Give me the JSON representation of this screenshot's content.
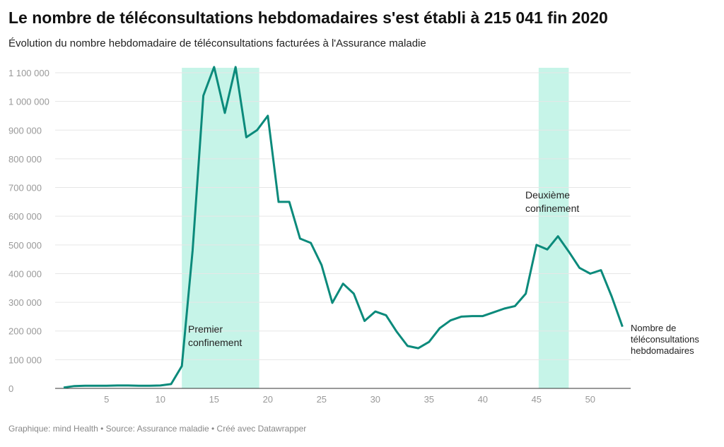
{
  "title": "Le nombre de téléconsultations hebdomadaires s'est établi à 215 041 fin 2020",
  "subtitle": "Évolution du nombre hebdomadaire de téléconsultations facturées à l'Assurance maladie",
  "footer": "Graphique: mind Health • Source: Assurance maladie • Créé avec Datawrapper",
  "colors": {
    "line": "#0b8a7b",
    "band": "#c6f4e8",
    "grid": "#e6e6e6"
  },
  "chart_data": {
    "type": "line",
    "title": "Le nombre de téléconsultations hebdomadaires s'est établi à 215 041 fin 2020",
    "xlabel": "",
    "ylabel": "",
    "xlim": [
      1,
      53
    ],
    "ylim": [
      0,
      1100000
    ],
    "grid": true,
    "x_ticks": [
      5,
      10,
      15,
      20,
      25,
      30,
      35,
      40,
      45,
      50
    ],
    "y_ticks": [
      0,
      100000,
      200000,
      300000,
      400000,
      500000,
      600000,
      700000,
      800000,
      900000,
      1000000,
      1100000
    ],
    "y_tick_labels": [
      "0",
      "100 000",
      "200 000",
      "300 000",
      "400 000",
      "500 000",
      "600 000",
      "700 000",
      "800 000",
      "900 000",
      "1 000 000",
      "1 100 000"
    ],
    "series": [
      {
        "name": "Nombre de téléconsultations hebdomadaires",
        "label_lines": [
          "Nombre de",
          "téléconsultations",
          "hebdomadaires"
        ],
        "x": [
          1,
          2,
          3,
          4,
          5,
          6,
          7,
          8,
          9,
          10,
          11,
          12,
          13,
          14,
          15,
          16,
          17,
          18,
          19,
          20,
          21,
          22,
          23,
          24,
          25,
          26,
          27,
          28,
          29,
          30,
          31,
          32,
          33,
          34,
          35,
          36,
          37,
          38,
          39,
          40,
          41,
          42,
          43,
          44,
          45,
          46,
          47,
          48,
          49,
          50,
          51,
          52,
          53
        ],
        "values": [
          3000,
          8000,
          9000,
          9000,
          9000,
          10000,
          10000,
          9000,
          9000,
          10000,
          15000,
          78000,
          480000,
          1020000,
          1120000,
          960000,
          1120000,
          875000,
          900000,
          950000,
          650000,
          650000,
          522000,
          507000,
          430000,
          298000,
          365000,
          330000,
          235000,
          268000,
          255000,
          197000,
          148000,
          140000,
          162000,
          210000,
          237000,
          250000,
          252000,
          252000,
          265000,
          278000,
          287000,
          330000,
          500000,
          484000,
          530000,
          477000,
          420000,
          400000,
          412000,
          320000,
          215041
        ]
      }
    ],
    "bands": [
      {
        "from": 12,
        "to": 19.2,
        "label_lines": [
          "Premier",
          "confinement"
        ]
      },
      {
        "from": 45.2,
        "to": 48,
        "label_lines": [
          "Deuxième",
          "confinement"
        ]
      }
    ]
  }
}
